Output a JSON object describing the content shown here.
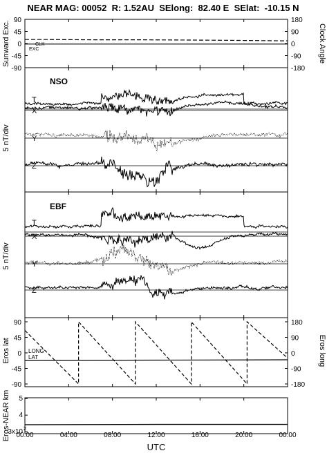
{
  "title": "NEAR MAG: 00052  R: 1.52AU  SElong:  82.40 E  SElat:  -10.15 N",
  "x_label": "UTC",
  "x_ticks": [
    "00:00",
    "04:00",
    "08:00",
    "12:00",
    "16:00",
    "20:00",
    "00:00"
  ],
  "chart_data": [
    {
      "type": "line",
      "panel": "sunward-exc-clock-angle",
      "ylabel_left": "Sunward Exc.",
      "ylabel_right": "Clock Angle",
      "yticks_left": [
        "90",
        "45",
        "0",
        "-45",
        "-90"
      ],
      "yticks_right": [
        "180",
        "90",
        "0",
        "-90",
        "-180"
      ],
      "ylim_left": [
        -90,
        90
      ],
      "ylim_right": [
        -180,
        180
      ],
      "series_labels": [
        "CLK",
        "EXC"
      ],
      "series": [
        {
          "name": "CLK",
          "style": "dashed",
          "x_hours": [
            0,
            2,
            6,
            10,
            14,
            18,
            21,
            23.3,
            24
          ],
          "values": [
            15,
            15,
            14,
            14,
            13,
            12,
            11,
            10,
            10
          ]
        },
        {
          "name": "EXC",
          "style": "solid",
          "x_hours": [
            0,
            24
          ],
          "values": [
            -2,
            -2
          ]
        }
      ]
    },
    {
      "type": "line",
      "panel": "NSO",
      "label": "NSO",
      "ylabel": "5 nT/div",
      "traces": [
        "T",
        "X",
        "Y",
        "Z"
      ]
    },
    {
      "type": "line",
      "panel": "EBF",
      "label": "EBF",
      "ylabel": "5 nT/div",
      "traces": [
        "T",
        "X",
        "Y",
        "Z"
      ]
    },
    {
      "type": "line",
      "panel": "eros-lat-long",
      "ylabel_left": "Eros lat",
      "ylabel_right": "Eros long",
      "yticks_left": [
        "90",
        "45",
        "0",
        "-45",
        "-90"
      ],
      "yticks_right": [
        "180",
        "90",
        "0",
        "-90",
        "-180"
      ],
      "ylim_left": [
        -90,
        90
      ],
      "ylim_right": [
        -180,
        180
      ],
      "series_labels": [
        "LONG",
        "LAT"
      ],
      "series": [
        {
          "name": "LONG",
          "style": "dashed",
          "x_hours": [
            0,
            4.9,
            4.9,
            10.1,
            10.1,
            15.2,
            15.2,
            20.3,
            20.3,
            24
          ],
          "values": [
            130,
            -180,
            180,
            -180,
            180,
            -180,
            180,
            -180,
            180,
            -30
          ]
        },
        {
          "name": "LAT",
          "style": "solid",
          "x_hours": [
            0,
            12,
            24
          ],
          "values": [
            -22,
            -21,
            -20
          ]
        }
      ]
    },
    {
      "type": "line",
      "panel": "eros-near-distance",
      "ylabel": "Eros-NEAR km",
      "yticks": [
        "5",
        "4",
        "3x10"
      ],
      "tick_superscript": "2",
      "series": [
        {
          "name": "",
          "x_hours": [
            0,
            6,
            12,
            18,
            24
          ],
          "values": [
            3.42,
            3.43,
            3.44,
            3.44,
            3.44
          ]
        }
      ]
    }
  ]
}
